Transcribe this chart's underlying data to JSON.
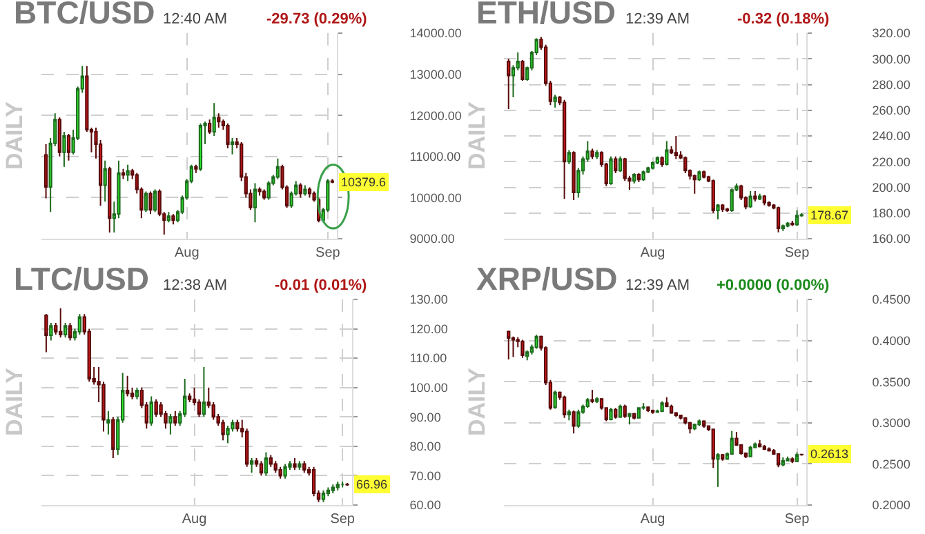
{
  "chart_data": [
    {
      "type": "candlestick",
      "title": "BTC/USD",
      "ylabel": "DAILY",
      "annotations": [
        "12:40 AM",
        "-29.73 (0.29%)",
        {
          "text": "10379.6",
          "x": "--09-02",
          "y": 10379.6
        }
      ],
      "grid": true,
      "ylim": [
        9000,
        14000
      ],
      "yticks": [
        {
          "value": 9000,
          "label": "9000.00"
        },
        {
          "value": 10000,
          "label": "10000.00"
        },
        {
          "value": 11000,
          "label": "11000.00"
        },
        {
          "value": 12000,
          "label": "12000.00"
        },
        {
          "value": 13000,
          "label": "13000.00"
        },
        {
          "value": 14000,
          "label": "14000.00"
        }
      ],
      "xlim": [
        "--06-30",
        "--09-03"
      ],
      "xticks": [
        {
          "value": "--08-01",
          "label": "Aug"
        },
        {
          "value": "--09-01",
          "label": "Sep"
        }
      ],
      "x": [
        "--07-01",
        "--07-02",
        "--07-03",
        "--07-04",
        "--07-05",
        "--07-06",
        "--07-07",
        "--07-08",
        "--07-09",
        "--07-10",
        "--07-11",
        "--07-12",
        "--07-13",
        "--07-14",
        "--07-15",
        "--07-16",
        "--07-17",
        "--07-18",
        "--07-19",
        "--07-20",
        "--07-21",
        "--07-22",
        "--07-23",
        "--07-24",
        "--07-25",
        "--07-26",
        "--07-27",
        "--07-28",
        "--07-29",
        "--07-30",
        "--07-31",
        "--08-01",
        "--08-02",
        "--08-03",
        "--08-04",
        "--08-05",
        "--08-06",
        "--08-07",
        "--08-08",
        "--08-09",
        "--08-10",
        "--08-11",
        "--08-12",
        "--08-13",
        "--08-14",
        "--08-15",
        "--08-16",
        "--08-17",
        "--08-18",
        "--08-19",
        "--08-20",
        "--08-21",
        "--08-22",
        "--08-23",
        "--08-24",
        "--08-25",
        "--08-26",
        "--08-27",
        "--08-28",
        "--08-29",
        "--08-30",
        "--08-31",
        "--09-01",
        "--09-02"
      ],
      "ohlc": [
        [
          11040,
          11300,
          9980,
          10260
        ],
        [
          10260,
          11450,
          9650,
          11320
        ],
        [
          11320,
          12050,
          11250,
          11900
        ],
        [
          11900,
          11950,
          11000,
          11100
        ],
        [
          11100,
          11600,
          10750,
          11500
        ],
        [
          11500,
          11550,
          10900,
          11100
        ],
        [
          11100,
          11650,
          11050,
          11450
        ],
        [
          11450,
          12700,
          11400,
          12650
        ],
        [
          12650,
          13200,
          12550,
          12950
        ],
        [
          12950,
          13200,
          11600,
          11650
        ],
        [
          11650,
          11700,
          11100,
          11600
        ],
        [
          11600,
          11700,
          10950,
          11300
        ],
        [
          11300,
          11400,
          9800,
          10300
        ],
        [
          10300,
          10900,
          9900,
          10700
        ],
        [
          10700,
          10750,
          9150,
          9500
        ],
        [
          9500,
          9900,
          9150,
          9600
        ],
        [
          9600,
          10900,
          9500,
          10600
        ],
        [
          10600,
          10700,
          10450,
          10550
        ],
        [
          10550,
          10800,
          10400,
          10650
        ],
        [
          10650,
          10700,
          10450,
          10550
        ],
        [
          10550,
          10600,
          10100,
          10200
        ],
        [
          10200,
          10250,
          9500,
          9700
        ],
        [
          9700,
          10150,
          9650,
          10100
        ],
        [
          10100,
          10150,
          9600,
          9700
        ],
        [
          9700,
          10200,
          9650,
          10150
        ],
        [
          10150,
          10200,
          9550,
          9600
        ],
        [
          9600,
          9650,
          9100,
          9450
        ],
        [
          9450,
          9650,
          9400,
          9550
        ],
        [
          9550,
          9600,
          9350,
          9450
        ],
        [
          9450,
          9700,
          9400,
          9650
        ],
        [
          9650,
          10050,
          9600,
          10000
        ],
        [
          10000,
          10450,
          9950,
          10400
        ],
        [
          10400,
          10800,
          10350,
          10750
        ],
        [
          10750,
          10800,
          10600,
          10700
        ],
        [
          10700,
          11800,
          10650,
          11750
        ],
        [
          11750,
          11850,
          11300,
          11800
        ],
        [
          11800,
          11900,
          11550,
          11600
        ],
        [
          11600,
          12300,
          11500,
          11950
        ],
        [
          11950,
          12050,
          11700,
          11850
        ],
        [
          11850,
          11900,
          11650,
          11750
        ],
        [
          11750,
          11800,
          11200,
          11300
        ],
        [
          11300,
          11450,
          11050,
          11350
        ],
        [
          11350,
          11450,
          11200,
          11300
        ],
        [
          11300,
          11350,
          10400,
          10500
        ],
        [
          10500,
          10600,
          10000,
          10100
        ],
        [
          10100,
          10200,
          9700,
          9760
        ],
        [
          9760,
          10350,
          9400,
          10200
        ],
        [
          10200,
          10250,
          10050,
          10150
        ],
        [
          10150,
          10200,
          9950,
          10000
        ],
        [
          10000,
          10400,
          9950,
          10350
        ],
        [
          10350,
          10550,
          10300,
          10500
        ],
        [
          10500,
          10950,
          10450,
          10750
        ],
        [
          10750,
          10800,
          10200,
          10250
        ],
        [
          10250,
          10300,
          9750,
          9800
        ],
        [
          9800,
          10150,
          9750,
          10100
        ],
        [
          10100,
          10400,
          10050,
          10300
        ],
        [
          10300,
          10350,
          10000,
          10100
        ],
        [
          10100,
          10300,
          10050,
          10200
        ],
        [
          10200,
          10250,
          10000,
          10100
        ],
        [
          10100,
          10150,
          9900,
          9950
        ],
        [
          9950,
          10000,
          9400,
          9450
        ],
        [
          9450,
          9750,
          9400,
          9700
        ],
        [
          9700,
          10450,
          9650,
          10400
        ],
        [
          10400,
          10450,
          10350,
          10379.6
        ]
      ]
    },
    {
      "type": "candlestick",
      "title": "ETH/USD",
      "ylabel": "DAILY",
      "annotations": [
        "12:39 AM",
        "-0.32 (0.18%)",
        {
          "text": "178.67",
          "x": "--09-02",
          "y": 178.67
        }
      ],
      "grid": true,
      "ylim": [
        160,
        320
      ],
      "yticks": [
        {
          "value": 160,
          "label": "160.00"
        },
        {
          "value": 180,
          "label": "180.00"
        },
        {
          "value": 200,
          "label": "200.00"
        },
        {
          "value": 220,
          "label": "220.00"
        },
        {
          "value": 240,
          "label": "240.00"
        },
        {
          "value": 260,
          "label": "260.00"
        },
        {
          "value": 280,
          "label": "280.00"
        },
        {
          "value": 300,
          "label": "300.00"
        },
        {
          "value": 320,
          "label": "320.00"
        }
      ],
      "xlim": [
        "--06-30",
        "--09-03"
      ],
      "xticks": [
        {
          "value": "--08-01",
          "label": "Aug"
        },
        {
          "value": "--09-01",
          "label": "Sep"
        }
      ],
      "x": [
        "--07-01",
        "--07-02",
        "--07-03",
        "--07-04",
        "--07-05",
        "--07-06",
        "--07-07",
        "--07-08",
        "--07-09",
        "--07-10",
        "--07-11",
        "--07-12",
        "--07-13",
        "--07-14",
        "--07-15",
        "--07-16",
        "--07-17",
        "--07-18",
        "--07-19",
        "--07-20",
        "--07-21",
        "--07-22",
        "--07-23",
        "--07-24",
        "--07-25",
        "--07-26",
        "--07-27",
        "--07-28",
        "--07-29",
        "--07-30",
        "--07-31",
        "--08-01",
        "--08-02",
        "--08-03",
        "--08-04",
        "--08-05",
        "--08-06",
        "--08-07",
        "--08-08",
        "--08-09",
        "--08-10",
        "--08-11",
        "--08-12",
        "--08-13",
        "--08-14",
        "--08-15",
        "--08-16",
        "--08-17",
        "--08-18",
        "--08-19",
        "--08-20",
        "--08-21",
        "--08-22",
        "--08-23",
        "--08-24",
        "--08-25",
        "--08-26",
        "--08-27",
        "--08-28",
        "--08-29",
        "--08-30",
        "--08-31",
        "--09-01",
        "--09-02"
      ],
      "ohlc": [
        [
          298,
          300,
          261,
          287
        ],
        [
          287,
          295,
          270,
          293
        ],
        [
          293,
          305,
          291,
          298
        ],
        [
          298,
          299,
          283,
          284
        ],
        [
          284,
          294,
          283,
          293
        ],
        [
          293,
          306,
          291,
          305
        ],
        [
          305,
          316,
          303,
          315
        ],
        [
          315,
          317,
          307,
          309
        ],
        [
          309,
          311,
          279,
          281
        ],
        [
          281,
          283,
          264,
          267
        ],
        [
          267,
          272,
          262,
          270
        ],
        [
          270,
          271,
          264,
          266
        ],
        [
          266,
          268,
          191,
          220
        ],
        [
          220,
          229,
          218,
          227
        ],
        [
          227,
          228,
          190,
          196
        ],
        [
          196,
          215,
          192,
          213
        ],
        [
          213,
          224,
          210,
          222
        ],
        [
          222,
          236,
          220,
          228
        ],
        [
          228,
          230,
          222,
          224
        ],
        [
          224,
          229,
          222,
          227
        ],
        [
          227,
          228,
          216,
          218
        ],
        [
          218,
          219,
          201,
          203
        ],
        [
          203,
          224,
          202,
          222
        ],
        [
          222,
          224,
          211,
          213
        ],
        [
          213,
          224,
          212,
          222
        ],
        [
          222,
          223,
          205,
          207
        ],
        [
          207,
          209,
          198,
          205
        ],
        [
          205,
          211,
          203,
          210
        ],
        [
          210,
          211,
          204,
          206
        ],
        [
          206,
          213,
          205,
          212
        ],
        [
          212,
          216,
          211,
          215
        ],
        [
          215,
          220,
          214,
          219
        ],
        [
          219,
          224,
          218,
          223
        ],
        [
          223,
          224,
          216,
          218
        ],
        [
          218,
          236,
          217,
          229
        ],
        [
          229,
          232,
          226,
          227
        ],
        [
          227,
          240,
          222,
          225
        ],
        [
          225,
          228,
          222,
          223
        ],
        [
          223,
          224,
          211,
          213
        ],
        [
          213,
          214,
          206,
          209
        ],
        [
          209,
          210,
          195,
          206
        ],
        [
          206,
          213,
          205,
          212
        ],
        [
          212,
          213,
          207,
          208
        ],
        [
          208,
          209,
          204,
          205
        ],
        [
          205,
          206,
          180,
          182
        ],
        [
          182,
          187,
          175,
          186
        ],
        [
          186,
          187,
          181,
          183
        ],
        [
          183,
          184,
          181,
          182
        ],
        [
          182,
          199,
          181,
          198
        ],
        [
          198,
          203,
          197,
          201
        ],
        [
          201,
          202,
          190,
          192
        ],
        [
          192,
          193,
          183,
          185
        ],
        [
          185,
          197,
          184,
          193
        ],
        [
          193,
          197,
          189,
          191
        ],
        [
          191,
          195,
          190,
          193
        ],
        [
          193,
          194,
          186,
          188
        ],
        [
          188,
          189,
          185,
          186
        ],
        [
          186,
          187,
          183,
          184
        ],
        [
          184,
          185,
          165,
          168
        ],
        [
          168,
          171,
          166,
          170
        ],
        [
          170,
          173,
          169,
          172
        ],
        [
          172,
          174,
          170,
          171
        ],
        [
          171,
          182,
          170,
          178
        ],
        [
          178,
          180,
          177,
          178.67
        ]
      ]
    },
    {
      "type": "candlestick",
      "title": "LTC/USD",
      "ylabel": "DAILY",
      "annotations": [
        "12:38 AM",
        "-0.01 (0.01%)",
        {
          "text": "66.96",
          "x": "--09-02",
          "y": 66.96
        }
      ],
      "grid": true,
      "ylim": [
        60,
        130
      ],
      "yticks": [
        {
          "value": 60,
          "label": "60.00"
        },
        {
          "value": 70,
          "label": "70.00"
        },
        {
          "value": 80,
          "label": "80.00"
        },
        {
          "value": 90,
          "label": "90.00"
        },
        {
          "value": 100,
          "label": "100.00"
        },
        {
          "value": 110,
          "label": "110.00"
        },
        {
          "value": 120,
          "label": "120.00"
        },
        {
          "value": 130,
          "label": "130.00"
        }
      ],
      "xlim": [
        "--06-30",
        "--09-03"
      ],
      "xticks": [
        {
          "value": "--08-01",
          "label": "Aug"
        },
        {
          "value": "--09-01",
          "label": "Sep"
        }
      ],
      "x": [
        "--07-01",
        "--07-02",
        "--07-03",
        "--07-04",
        "--07-05",
        "--07-06",
        "--07-07",
        "--07-08",
        "--07-09",
        "--07-10",
        "--07-11",
        "--07-12",
        "--07-13",
        "--07-14",
        "--07-15",
        "--07-16",
        "--07-17",
        "--07-18",
        "--07-19",
        "--07-20",
        "--07-21",
        "--07-22",
        "--07-23",
        "--07-24",
        "--07-25",
        "--07-26",
        "--07-27",
        "--07-28",
        "--07-29",
        "--07-30",
        "--07-31",
        "--08-01",
        "--08-02",
        "--08-03",
        "--08-04",
        "--08-05",
        "--08-06",
        "--08-07",
        "--08-08",
        "--08-09",
        "--08-10",
        "--08-11",
        "--08-12",
        "--08-13",
        "--08-14",
        "--08-15",
        "--08-16",
        "--08-17",
        "--08-18",
        "--08-19",
        "--08-20",
        "--08-21",
        "--08-22",
        "--08-23",
        "--08-24",
        "--08-25",
        "--08-26",
        "--08-27",
        "--08-28",
        "--08-29",
        "--08-30",
        "--08-31",
        "--09-01",
        "--09-02"
      ],
      "ohlc": [
        [
          124.6,
          125,
          112,
          117.8
        ],
        [
          117.8,
          122,
          116,
          121
        ],
        [
          121,
          122,
          118,
          119
        ],
        [
          119,
          127,
          117,
          118
        ],
        [
          118,
          122,
          117,
          121
        ],
        [
          121,
          122,
          116,
          117
        ],
        [
          117,
          120,
          116,
          119
        ],
        [
          119,
          125,
          118,
          124
        ],
        [
          124,
          125,
          118,
          119
        ],
        [
          119,
          120,
          102,
          103
        ],
        [
          103,
          107,
          101,
          102
        ],
        [
          102,
          107,
          95,
          101
        ],
        [
          101,
          102,
          85,
          89
        ],
        [
          88,
          92,
          84,
          89
        ],
        [
          89,
          90,
          76,
          79
        ],
        [
          79,
          90,
          77,
          89
        ],
        [
          89,
          105,
          88,
          99
        ],
        [
          99,
          104,
          97,
          98
        ],
        [
          98,
          100,
          96,
          97
        ],
        [
          97,
          100,
          96,
          99
        ],
        [
          99,
          100,
          93,
          94
        ],
        [
          94,
          95,
          86,
          88
        ],
        [
          88,
          97,
          87,
          95
        ],
        [
          95,
          96,
          90,
          91
        ],
        [
          94,
          95,
          90,
          91
        ],
        [
          91,
          92,
          86,
          88
        ],
        [
          88,
          91,
          84,
          90
        ],
        [
          90,
          92,
          87,
          88
        ],
        [
          88,
          92,
          87,
          91
        ],
        [
          91,
          103,
          90,
          97
        ],
        [
          97,
          98,
          95,
          96
        ],
        [
          96,
          100,
          94,
          95
        ],
        [
          95,
          96,
          90,
          91
        ],
        [
          91,
          107,
          90,
          95
        ],
        [
          95,
          100,
          93,
          94
        ],
        [
          94,
          95,
          89,
          90
        ],
        [
          90,
          91,
          87,
          88
        ],
        [
          88,
          89,
          82,
          84
        ],
        [
          84,
          87,
          81,
          86
        ],
        [
          86,
          89,
          85,
          88
        ],
        [
          88,
          89,
          85,
          86
        ],
        [
          86,
          89,
          83,
          85
        ],
        [
          85,
          86,
          73,
          74
        ],
        [
          74,
          76,
          71,
          75
        ],
        [
          75,
          76,
          73,
          74
        ],
        [
          74,
          75,
          70,
          71
        ],
        [
          71,
          78,
          70,
          76
        ],
        [
          76,
          77,
          73,
          74
        ],
        [
          74,
          75,
          71,
          72
        ],
        [
          72,
          73,
          69,
          70
        ],
        [
          70,
          74,
          69,
          73
        ],
        [
          73,
          75,
          72,
          74
        ],
        [
          74,
          76,
          72,
          73
        ],
        [
          73,
          75,
          72,
          74
        ],
        [
          74,
          75,
          71,
          72
        ],
        [
          72,
          73,
          70,
          71
        ],
        [
          72,
          73,
          63,
          64
        ],
        [
          64,
          65,
          61,
          62
        ],
        [
          62,
          65,
          61,
          64
        ],
        [
          64,
          66,
          63,
          65
        ],
        [
          65,
          67,
          64,
          66
        ],
        [
          66,
          68,
          65,
          67
        ],
        [
          67,
          68,
          66,
          67
        ],
        [
          67,
          67.5,
          66.5,
          66.96
        ]
      ]
    },
    {
      "type": "candlestick",
      "title": "XRP/USD",
      "ylabel": "DAILY",
      "annotations": [
        "12:39 AM",
        "+0.0000 (0.00%)",
        {
          "text": "0.2613",
          "x": "--09-02",
          "y": 0.2613
        }
      ],
      "grid": true,
      "ylim": [
        0.2,
        0.45
      ],
      "yticks": [
        {
          "value": 0.2,
          "label": "0.2000"
        },
        {
          "value": 0.25,
          "label": "0.2500"
        },
        {
          "value": 0.3,
          "label": "0.3000"
        },
        {
          "value": 0.35,
          "label": "0.3500"
        },
        {
          "value": 0.4,
          "label": "0.4000"
        },
        {
          "value": 0.45,
          "label": "0.4500"
        }
      ],
      "xlim": [
        "--06-30",
        "--09-03"
      ],
      "xticks": [
        {
          "value": "--08-01",
          "label": "Aug"
        },
        {
          "value": "--09-01",
          "label": "Sep"
        }
      ],
      "x": [
        "--07-01",
        "--07-02",
        "--07-03",
        "--07-04",
        "--07-05",
        "--07-06",
        "--07-07",
        "--07-08",
        "--07-09",
        "--07-10",
        "--07-11",
        "--07-12",
        "--07-13",
        "--07-14",
        "--07-15",
        "--07-16",
        "--07-17",
        "--07-18",
        "--07-19",
        "--07-20",
        "--07-21",
        "--07-22",
        "--07-23",
        "--07-24",
        "--07-25",
        "--07-26",
        "--07-27",
        "--07-28",
        "--07-29",
        "--07-30",
        "--07-31",
        "--08-01",
        "--08-02",
        "--08-03",
        "--08-04",
        "--08-05",
        "--08-06",
        "--08-07",
        "--08-08",
        "--08-09",
        "--08-10",
        "--08-11",
        "--08-12",
        "--08-13",
        "--08-14",
        "--08-15",
        "--08-16",
        "--08-17",
        "--08-18",
        "--08-19",
        "--08-20",
        "--08-21",
        "--08-22",
        "--08-23",
        "--08-24",
        "--08-25",
        "--08-26",
        "--08-27",
        "--08-28",
        "--08-29",
        "--08-30",
        "--08-31",
        "--09-01",
        "--09-02"
      ],
      "ohlc": [
        [
          0.411,
          0.412,
          0.377,
          0.403
        ],
        [
          0.403,
          0.405,
          0.38,
          0.401
        ],
        [
          0.401,
          0.404,
          0.392,
          0.399
        ],
        [
          0.399,
          0.401,
          0.379,
          0.382
        ],
        [
          0.381,
          0.388,
          0.376,
          0.386
        ],
        [
          0.386,
          0.395,
          0.383,
          0.392
        ],
        [
          0.392,
          0.407,
          0.39,
          0.405
        ],
        [
          0.405,
          0.406,
          0.388,
          0.391
        ],
        [
          0.391,
          0.393,
          0.346,
          0.349
        ],
        [
          0.349,
          0.352,
          0.316,
          0.318
        ],
        [
          0.319,
          0.339,
          0.317,
          0.337
        ],
        [
          0.337,
          0.338,
          0.328,
          0.331
        ],
        [
          0.331,
          0.333,
          0.306,
          0.31
        ],
        [
          0.31,
          0.316,
          0.303,
          0.313
        ],
        [
          0.313,
          0.315,
          0.287,
          0.296
        ],
        [
          0.296,
          0.316,
          0.294,
          0.313
        ],
        [
          0.313,
          0.322,
          0.311,
          0.32
        ],
        [
          0.32,
          0.33,
          0.318,
          0.328
        ],
        [
          0.328,
          0.34,
          0.324,
          0.326
        ],
        [
          0.326,
          0.331,
          0.324,
          0.329
        ],
        [
          0.329,
          0.33,
          0.316,
          0.318
        ],
        [
          0.318,
          0.319,
          0.302,
          0.304
        ],
        [
          0.304,
          0.318,
          0.303,
          0.316
        ],
        [
          0.316,
          0.318,
          0.305,
          0.307
        ],
        [
          0.307,
          0.322,
          0.306,
          0.32
        ],
        [
          0.32,
          0.322,
          0.306,
          0.308
        ],
        [
          0.308,
          0.312,
          0.298,
          0.311
        ],
        [
          0.311,
          0.312,
          0.304,
          0.306
        ],
        [
          0.306,
          0.319,
          0.305,
          0.318
        ],
        [
          0.318,
          0.324,
          0.316,
          0.319
        ],
        [
          0.319,
          0.32,
          0.313,
          0.315
        ],
        [
          0.315,
          0.316,
          0.311,
          0.313
        ],
        [
          0.313,
          0.316,
          0.312,
          0.314
        ],
        [
          0.314,
          0.326,
          0.313,
          0.324
        ],
        [
          0.324,
          0.331,
          0.319,
          0.32
        ],
        [
          0.32,
          0.322,
          0.311,
          0.312
        ],
        [
          0.312,
          0.313,
          0.307,
          0.309
        ],
        [
          0.309,
          0.31,
          0.304,
          0.306
        ],
        [
          0.306,
          0.307,
          0.298,
          0.3
        ],
        [
          0.3,
          0.301,
          0.287,
          0.293
        ],
        [
          0.293,
          0.299,
          0.291,
          0.298
        ],
        [
          0.298,
          0.304,
          0.296,
          0.302
        ],
        [
          0.302,
          0.303,
          0.294,
          0.296
        ],
        [
          0.296,
          0.297,
          0.29,
          0.292
        ],
        [
          0.292,
          0.293,
          0.245,
          0.256
        ],
        [
          0.256,
          0.263,
          0.222,
          0.261
        ],
        [
          0.261,
          0.262,
          0.254,
          0.256
        ],
        [
          0.256,
          0.264,
          0.255,
          0.262
        ],
        [
          0.262,
          0.29,
          0.261,
          0.281
        ],
        [
          0.281,
          0.289,
          0.272,
          0.273
        ],
        [
          0.273,
          0.274,
          0.261,
          0.263
        ],
        [
          0.263,
          0.264,
          0.257,
          0.259
        ],
        [
          0.259,
          0.272,
          0.258,
          0.27
        ],
        [
          0.27,
          0.276,
          0.269,
          0.274
        ],
        [
          0.274,
          0.279,
          0.27,
          0.271
        ],
        [
          0.271,
          0.273,
          0.267,
          0.268
        ],
        [
          0.268,
          0.27,
          0.265,
          0.266
        ],
        [
          0.266,
          0.268,
          0.261,
          0.262
        ],
        [
          0.262,
          0.263,
          0.246,
          0.249
        ],
        [
          0.249,
          0.258,
          0.247,
          0.254
        ],
        [
          0.254,
          0.259,
          0.253,
          0.256
        ],
        [
          0.256,
          0.258,
          0.251,
          0.253
        ],
        [
          0.253,
          0.264,
          0.252,
          0.261
        ],
        [
          0.2615,
          0.262,
          0.26,
          0.2613
        ]
      ]
    }
  ]
}
